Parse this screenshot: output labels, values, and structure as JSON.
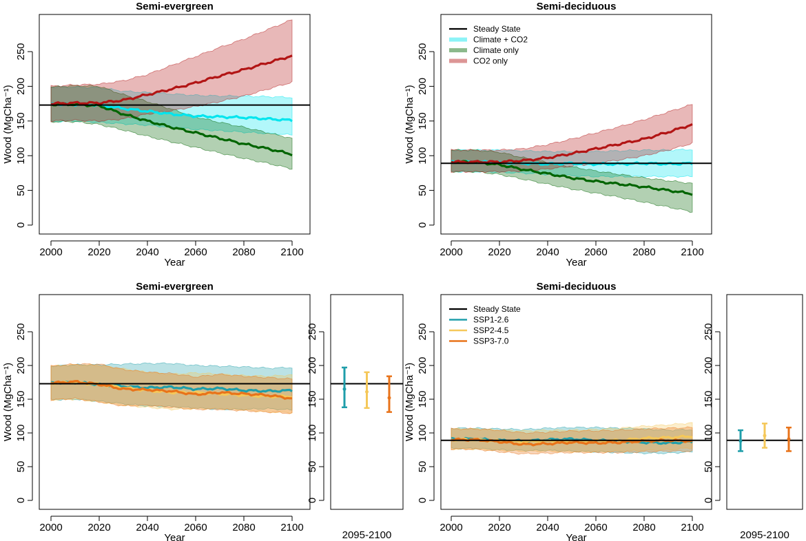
{
  "figure": {
    "colors": {
      "steady": "#000000",
      "climate_co2": "#00e5ee",
      "climate_only": "#006400",
      "co2_only": "#b21515",
      "ssp126": "#1f9eaa",
      "ssp245": "#f5c85a",
      "ssp370": "#e8731a"
    }
  },
  "chart_data": [
    {
      "id": "top-left",
      "type": "line",
      "title": "Semi-evergreen",
      "xlabel": "Year",
      "ylabel": "Wood (MgCha⁻¹)",
      "xlim": [
        2000,
        2100
      ],
      "ylim": [
        0,
        290
      ],
      "xticks": [
        "2000",
        "2020",
        "2040",
        "2060",
        "2080",
        "2100"
      ],
      "yticks": [
        "0",
        "50",
        "100",
        "150",
        "200",
        "250"
      ],
      "steady_state": 173,
      "legend": null,
      "series": [
        {
          "name": "Steady State",
          "color": "#000000"
        },
        {
          "name": "Climate + CO2",
          "color": "#00e5ee",
          "x": [
            2000,
            2010,
            2020,
            2030,
            2040,
            2050,
            2060,
            2070,
            2080,
            2090,
            2100
          ],
          "mean": [
            174,
            174,
            173,
            168,
            164,
            160,
            157,
            156,
            155,
            153,
            151
          ],
          "lower": [
            149,
            150,
            148,
            146,
            144,
            141,
            138,
            136,
            134,
            132,
            130
          ],
          "upper": [
            199,
            199,
            198,
            193,
            191,
            189,
            187,
            186,
            186,
            185,
            184
          ]
        },
        {
          "name": "Climate only",
          "color": "#006400",
          "x": [
            2000,
            2010,
            2020,
            2030,
            2040,
            2050,
            2060,
            2070,
            2080,
            2090,
            2100
          ],
          "mean": [
            174,
            174,
            172,
            160,
            150,
            141,
            133,
            125,
            117,
            110,
            102
          ],
          "lower": [
            149,
            149,
            145,
            137,
            128,
            120,
            112,
            104,
            96,
            89,
            81
          ],
          "upper": [
            199,
            201,
            200,
            188,
            178,
            167,
            156,
            148,
            141,
            133,
            125
          ]
        },
        {
          "name": "CO2 only",
          "color": "#b21515",
          "x": [
            2000,
            2010,
            2020,
            2030,
            2040,
            2050,
            2060,
            2070,
            2080,
            2090,
            2100
          ],
          "mean": [
            175,
            176,
            176,
            180,
            188,
            196,
            205,
            215,
            224,
            234,
            244
          ],
          "lower": [
            150,
            151,
            150,
            153,
            160,
            165,
            171,
            178,
            186,
            196,
            206
          ],
          "upper": [
            200,
            202,
            203,
            208,
            217,
            230,
            243,
            256,
            268,
            282,
            296
          ]
        }
      ]
    },
    {
      "id": "top-right",
      "type": "line",
      "title": "Semi-deciduous",
      "xlabel": "Year",
      "ylabel": "Wood (MgCha⁻¹)",
      "xlim": [
        2000,
        2100
      ],
      "ylim": [
        0,
        290
      ],
      "xticks": [
        "2000",
        "2020",
        "2040",
        "2060",
        "2080",
        "2100"
      ],
      "yticks": [
        "0",
        "50",
        "100",
        "150",
        "200",
        "250"
      ],
      "steady_state": 89,
      "legend": {
        "position": "top-left",
        "entries": [
          "Steady State",
          "Climate + CO2",
          "Climate only",
          "CO2 only"
        ]
      },
      "series": [
        {
          "name": "Steady State",
          "color": "#000000"
        },
        {
          "name": "Climate + CO2",
          "color": "#00e5ee",
          "x": [
            2000,
            2010,
            2020,
            2030,
            2040,
            2050,
            2060,
            2070,
            2080,
            2090,
            2100
          ],
          "mean": [
            91,
            91,
            90,
            89,
            88,
            89,
            88,
            88,
            89,
            88,
            89
          ],
          "lower": [
            77,
            77,
            76,
            75,
            73,
            71,
            70,
            70,
            70,
            70,
            70
          ],
          "upper": [
            108,
            108,
            108,
            107,
            106,
            106,
            106,
            107,
            108,
            108,
            109
          ]
        },
        {
          "name": "Climate only",
          "color": "#006400",
          "x": [
            2000,
            2010,
            2020,
            2030,
            2040,
            2050,
            2060,
            2070,
            2080,
            2090,
            2100
          ],
          "mean": [
            91,
            91,
            87,
            80,
            74,
            68,
            63,
            59,
            55,
            50,
            45
          ],
          "lower": [
            77,
            77,
            73,
            66,
            59,
            52,
            46,
            40,
            33,
            26,
            19
          ],
          "upper": [
            108,
            108,
            105,
            97,
            90,
            84,
            78,
            73,
            68,
            64,
            60
          ]
        },
        {
          "name": "CO2 only",
          "color": "#b21515",
          "x": [
            2000,
            2010,
            2020,
            2030,
            2040,
            2050,
            2060,
            2070,
            2080,
            2090,
            2100
          ],
          "mean": [
            91,
            91,
            91,
            93,
            97,
            103,
            110,
            117,
            124,
            134,
            145
          ],
          "lower": [
            77,
            77,
            77,
            78,
            81,
            85,
            89,
            94,
            100,
            108,
            118
          ],
          "upper": [
            108,
            108,
            108,
            110,
            116,
            124,
            133,
            142,
            152,
            163,
            174
          ]
        }
      ]
    },
    {
      "id": "bottom-left",
      "type": "line",
      "title": "Semi-evergreen",
      "xlabel": "Year",
      "ylabel": "Wood (MgCha⁻¹)",
      "xlim": [
        2000,
        2100
      ],
      "ylim": [
        0,
        290
      ],
      "xticks": [
        "2000",
        "2020",
        "2040",
        "2060",
        "2080",
        "2100"
      ],
      "yticks": [
        "0",
        "50",
        "100",
        "150",
        "200",
        "250"
      ],
      "steady_state": 173,
      "legend": null,
      "series": [
        {
          "name": "Steady State",
          "color": "#000000"
        },
        {
          "name": "SSP1-2.6",
          "color": "#1f9eaa",
          "x": [
            2000,
            2010,
            2020,
            2030,
            2040,
            2050,
            2060,
            2070,
            2080,
            2090,
            2100
          ],
          "mean": [
            174,
            175,
            172,
            169,
            167,
            168,
            165,
            166,
            163,
            162,
            163
          ],
          "lower": [
            149,
            150,
            147,
            143,
            140,
            139,
            137,
            135,
            135,
            136,
            134
          ],
          "upper": [
            199,
            201,
            201,
            202,
            203,
            203,
            200,
            199,
            198,
            196,
            197
          ]
        },
        {
          "name": "SSP2-4.5",
          "color": "#f5c85a",
          "x": [
            2000,
            2010,
            2020,
            2030,
            2040,
            2050,
            2060,
            2070,
            2080,
            2090,
            2100
          ],
          "mean": [
            174,
            175,
            172,
            167,
            163,
            160,
            160,
            158,
            156,
            154,
            154
          ],
          "lower": [
            149,
            150,
            146,
            141,
            138,
            135,
            136,
            136,
            134,
            131,
            130
          ],
          "upper": [
            199,
            201,
            200,
            195,
            190,
            187,
            189,
            187,
            185,
            184,
            186
          ]
        },
        {
          "name": "SSP3-7.0",
          "color": "#e8731a",
          "x": [
            2000,
            2010,
            2020,
            2030,
            2040,
            2050,
            2060,
            2070,
            2080,
            2090,
            2100
          ],
          "mean": [
            174,
            176,
            172,
            165,
            164,
            162,
            157,
            160,
            158,
            156,
            151
          ],
          "lower": [
            149,
            151,
            146,
            140,
            141,
            138,
            135,
            135,
            133,
            131,
            129
          ],
          "upper": [
            199,
            202,
            202,
            194,
            190,
            188,
            183,
            187,
            184,
            182,
            180
          ]
        }
      ]
    },
    {
      "id": "bottom-left-summary",
      "type": "errorbar",
      "xlabel": "2095-2100",
      "ylim": [
        0,
        290
      ],
      "yticks": [
        "0",
        "50",
        "100",
        "150",
        "200",
        "250"
      ],
      "steady_state": 173,
      "series": [
        {
          "name": "SSP1-2.6",
          "color": "#1f9eaa",
          "mean": 165,
          "lower": 138,
          "upper": 197
        },
        {
          "name": "SSP2-4.5",
          "color": "#f5c85a",
          "mean": 161,
          "lower": 137,
          "upper": 190
        },
        {
          "name": "SSP3-7.0",
          "color": "#e8731a",
          "mean": 152,
          "lower": 131,
          "upper": 184
        }
      ]
    },
    {
      "id": "bottom-right",
      "type": "line",
      "title": "Semi-deciduous",
      "xlabel": "Year",
      "ylabel": "Wood (MgCha⁻¹)",
      "xlim": [
        2000,
        2100
      ],
      "ylim": [
        0,
        290
      ],
      "xticks": [
        "2000",
        "2020",
        "2040",
        "2060",
        "2080",
        "2100"
      ],
      "yticks": [
        "0",
        "50",
        "100",
        "150",
        "200",
        "250"
      ],
      "steady_state": 89,
      "legend": {
        "position": "top-left",
        "entries": [
          "Steady State",
          "SSP1-2.6",
          "SSP2-4.5",
          "SSP3-7.0"
        ]
      },
      "series": [
        {
          "name": "Steady State",
          "color": "#000000"
        },
        {
          "name": "SSP1-2.6",
          "color": "#1f9eaa",
          "x": [
            2000,
            2010,
            2020,
            2030,
            2040,
            2050,
            2060,
            2070,
            2080,
            2090,
            2100
          ],
          "mean": [
            91,
            91,
            89,
            88,
            90,
            91,
            89,
            88,
            86,
            85,
            87
          ],
          "lower": [
            77,
            77,
            75,
            74,
            74,
            73,
            72,
            71,
            70,
            70,
            72
          ],
          "upper": [
            107,
            107,
            106,
            105,
            107,
            108,
            108,
            107,
            106,
            104,
            105
          ]
        },
        {
          "name": "SSP2-4.5",
          "color": "#f5c85a",
          "x": [
            2000,
            2010,
            2020,
            2030,
            2040,
            2050,
            2060,
            2070,
            2080,
            2090,
            2100
          ],
          "mean": [
            90,
            90,
            88,
            87,
            88,
            87,
            88,
            89,
            92,
            93,
            95
          ],
          "lower": [
            76,
            76,
            74,
            73,
            73,
            72,
            72,
            73,
            74,
            75,
            78
          ],
          "upper": [
            106,
            106,
            104,
            103,
            104,
            104,
            105,
            107,
            110,
            112,
            115
          ]
        },
        {
          "name": "SSP3-7.0",
          "color": "#e8731a",
          "x": [
            2000,
            2010,
            2020,
            2030,
            2040,
            2050,
            2060,
            2070,
            2080,
            2090,
            2100
          ],
          "mean": [
            90,
            90,
            87,
            83,
            84,
            86,
            85,
            86,
            88,
            89,
            88
          ],
          "lower": [
            76,
            76,
            72,
            69,
            70,
            71,
            71,
            71,
            72,
            73,
            73
          ],
          "upper": [
            106,
            106,
            104,
            100,
            101,
            103,
            103,
            104,
            106,
            107,
            108
          ]
        }
      ]
    },
    {
      "id": "bottom-right-summary",
      "type": "errorbar",
      "xlabel": "2095-2100",
      "ylim": [
        0,
        290
      ],
      "yticks": [
        "0",
        "50",
        "100",
        "150",
        "200",
        "250"
      ],
      "steady_state": 89,
      "series": [
        {
          "name": "SSP1-2.6",
          "color": "#1f9eaa",
          "mean": 88,
          "lower": 73,
          "upper": 104
        },
        {
          "name": "SSP2-4.5",
          "color": "#f5c85a",
          "mean": 96,
          "lower": 78,
          "upper": 114
        },
        {
          "name": "SSP3-7.0",
          "color": "#e8731a",
          "mean": 91,
          "lower": 73,
          "upper": 108
        }
      ]
    }
  ]
}
